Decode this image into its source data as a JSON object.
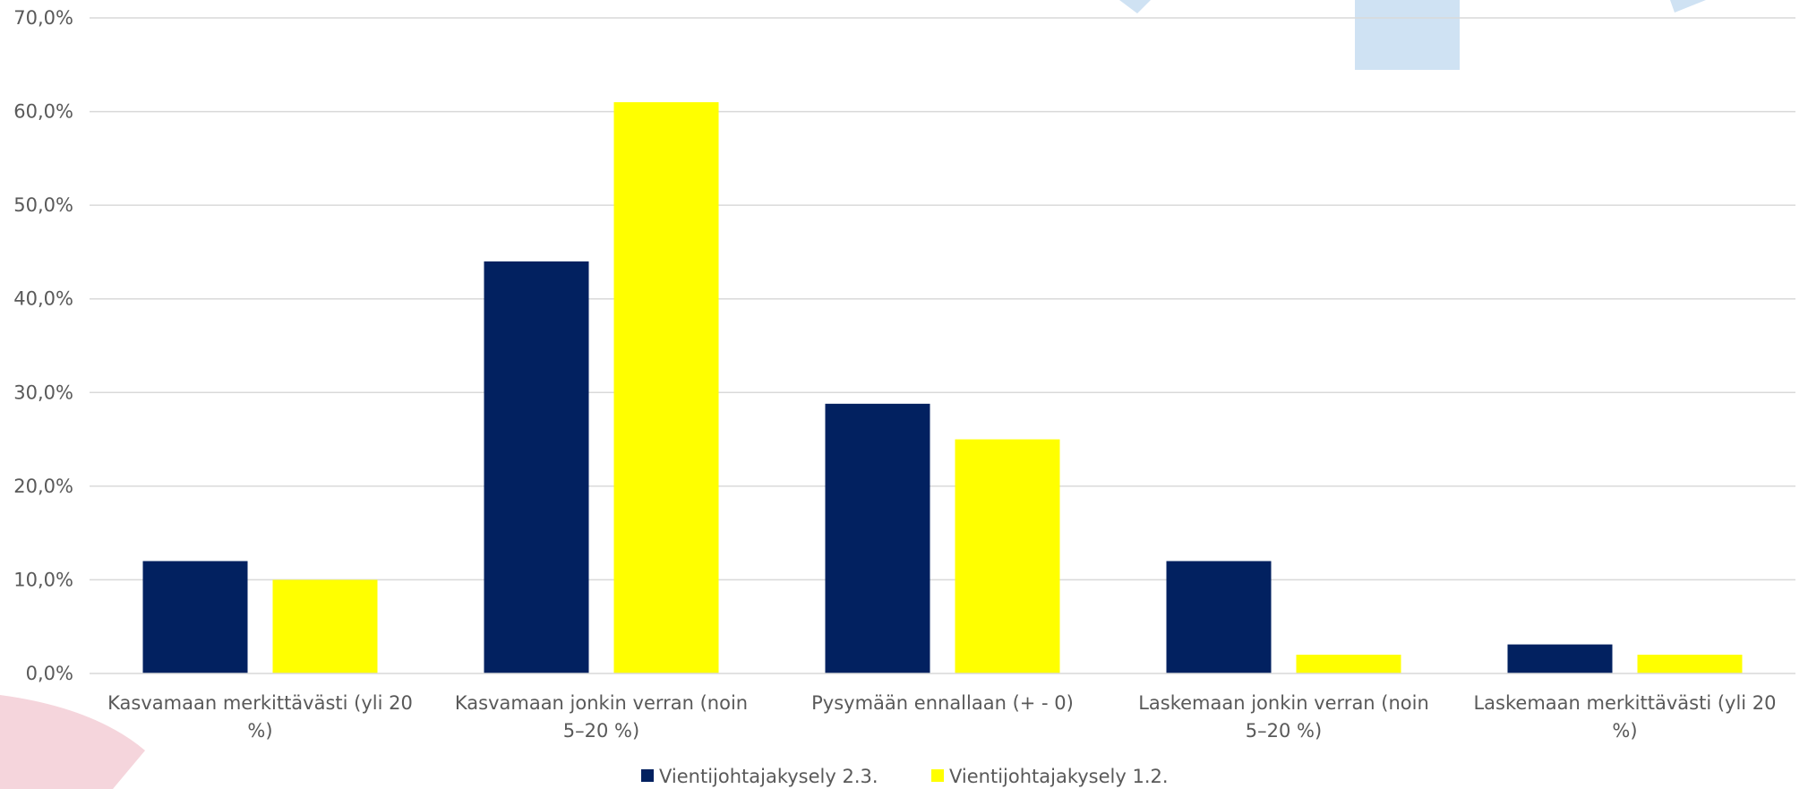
{
  "chart_data": {
    "type": "bar",
    "categories": [
      [
        "Kasvamaan merkittävästi (yli 20",
        "%)"
      ],
      [
        "Kasvamaan jonkin verran (noin",
        "5–20 %)"
      ],
      [
        "Pysymään ennallaan (+ - 0)"
      ],
      [
        "Laskemaan jonkin verran (noin",
        "5–20 %)"
      ],
      [
        "Laskemaan merkittävästi (yli 20",
        "%)"
      ]
    ],
    "series": [
      {
        "name": "Vientijohtajakysely 2.3.",
        "color": "#022160",
        "values": [
          12.0,
          44.0,
          28.8,
          12.0,
          3.1
        ]
      },
      {
        "name": "Vientijohtajakysely 1.2.",
        "color": "#FFFF00",
        "values": [
          10.0,
          61.0,
          25.0,
          2.0,
          2.0
        ]
      }
    ],
    "yticks": [
      "0,0%",
      "10,0%",
      "20,0%",
      "30,0%",
      "40,0%",
      "50,0%",
      "60,0%",
      "70,0%"
    ],
    "ylim": [
      0,
      70
    ],
    "grid": true,
    "legend_position": "bottom",
    "decor_color_blue": "#CFE2F3",
    "decor_color_pink": "#F5D5DC"
  }
}
